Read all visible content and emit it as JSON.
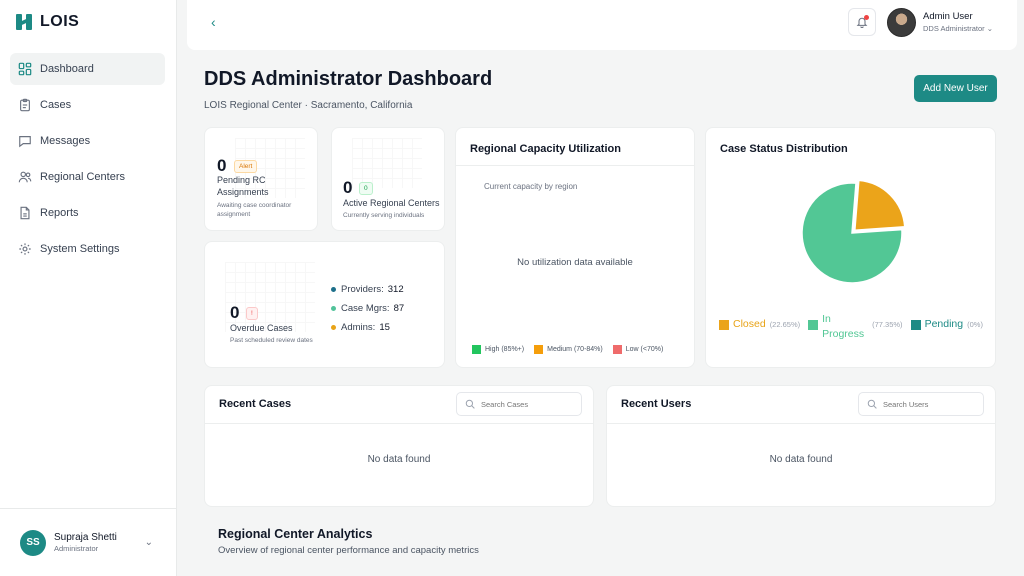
{
  "app": {
    "logo_text": "LOIS"
  },
  "sidebar": {
    "items": [
      {
        "label": "Dashboard",
        "icon": "grid-icon",
        "active": true
      },
      {
        "label": "Cases",
        "icon": "clipboard-icon"
      },
      {
        "label": "Messages",
        "icon": "message-icon"
      },
      {
        "label": "Regional Centers",
        "icon": "users-icon"
      },
      {
        "label": "Reports",
        "icon": "file-icon"
      },
      {
        "label": "System Settings",
        "icon": "gear-icon"
      }
    ],
    "user": {
      "initials": "SS",
      "name": "Supraja Shetti",
      "role": "Administrator"
    }
  },
  "topbar": {
    "user_name": "Admin User",
    "user_role": "DDS Administrator"
  },
  "header": {
    "title": "DDS Administrator Dashboard",
    "subtitle": "LOIS Regional Center · Sacramento, California",
    "add_user_label": "Add New User"
  },
  "stats": {
    "pending": {
      "value": "0",
      "badge": "Alert",
      "label": "Pending RC Assignments",
      "sub": "Awaiting case coordinator assignment"
    },
    "active": {
      "value": "0",
      "badge": "0",
      "label": "Active Regional Centers",
      "sub": "Currently serving individuals"
    },
    "overdue": {
      "value": "0",
      "badge": "!",
      "label": "Overdue Cases",
      "sub": "Past scheduled review dates"
    },
    "breakdown": [
      {
        "label": "Providers:",
        "value": "312",
        "color": "#1d6f8a"
      },
      {
        "label": "Case Mgrs:",
        "value": "87",
        "color": "#52c39a"
      },
      {
        "label": "Admins:",
        "value": "15",
        "color": "#e8a317"
      }
    ]
  },
  "capacity": {
    "title": "Regional Capacity Utilization",
    "subtitle": "Current capacity by region",
    "empty": "No utilization data available",
    "legend": [
      {
        "label": "High (85%+)",
        "color": "#22c55e"
      },
      {
        "label": "Medium (70-84%)",
        "color": "#f59e0b"
      },
      {
        "label": "Low (<70%)",
        "color": "#ef6b6b"
      }
    ]
  },
  "status": {
    "title": "Case Status Distribution",
    "legend": [
      {
        "label": "Closed",
        "pct": "(22.65%)",
        "color": "#eba41a",
        "label_color": "#e8a317"
      },
      {
        "label": "In Progress",
        "pct": "(77.35%)",
        "color": "#52c795",
        "label_color": "#52c795"
      },
      {
        "label": "Pending",
        "pct": "(0%)",
        "color": "#1d8a85",
        "label_color": "#1d8a85"
      }
    ]
  },
  "chart_data": {
    "type": "pie",
    "categories": [
      "Closed",
      "In Progress",
      "Pending"
    ],
    "values": [
      22.65,
      77.35,
      0
    ],
    "colors": [
      "#eba41a",
      "#52c795",
      "#1d8a85"
    ],
    "title": "Case Status Distribution",
    "legend": "bottom"
  },
  "recent_cases": {
    "title": "Recent Cases",
    "search_placeholder": "Search Cases",
    "empty": "No data found"
  },
  "recent_users": {
    "title": "Recent Users",
    "search_placeholder": "Search Users",
    "empty": "No data found"
  },
  "analytics": {
    "title": "Regional Center Analytics",
    "subtitle": "Overview of regional center performance and capacity metrics"
  }
}
